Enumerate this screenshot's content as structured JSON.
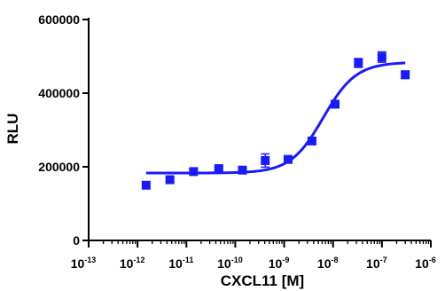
{
  "chart_data": {
    "type": "scatter",
    "xlabel": "CXCL11 [M]",
    "ylabel": "RLU",
    "x_scale": "log",
    "xlim": [
      1e-13,
      1e-06
    ],
    "ylim": [
      0,
      600000
    ],
    "x_ticks": [
      {
        "base": "10",
        "exp": "-13",
        "value": 1e-13
      },
      {
        "base": "10",
        "exp": "-12",
        "value": 1e-12
      },
      {
        "base": "10",
        "exp": "-11",
        "value": 1e-11
      },
      {
        "base": "10",
        "exp": "-10",
        "value": 1e-10
      },
      {
        "base": "10",
        "exp": "-9",
        "value": 1e-09
      },
      {
        "base": "10",
        "exp": "-8",
        "value": 1e-08
      },
      {
        "base": "10",
        "exp": "-7",
        "value": 1e-07
      },
      {
        "base": "10",
        "exp": "-6",
        "value": 1e-06
      }
    ],
    "y_ticks": [
      {
        "label": "0",
        "value": 0
      },
      {
        "label": "200000",
        "value": 200000
      },
      {
        "label": "400000",
        "value": 400000
      },
      {
        "label": "600000",
        "value": 600000
      }
    ],
    "grid": false,
    "legend": "none",
    "marker_color": "#1a1aff",
    "curve_color": "#1a1aff",
    "points": [
      {
        "x": 1.5e-12,
        "y": 150000,
        "err": 0
      },
      {
        "x": 4.6e-12,
        "y": 165000,
        "err": 8000
      },
      {
        "x": 1.4e-11,
        "y": 187000,
        "err": 6000
      },
      {
        "x": 4.6e-11,
        "y": 195000,
        "err": 4000
      },
      {
        "x": 1.4e-10,
        "y": 191000,
        "err": 3000
      },
      {
        "x": 4.1e-10,
        "y": 217000,
        "err": 18000
      },
      {
        "x": 1.2e-09,
        "y": 220000,
        "err": 5000
      },
      {
        "x": 3.7e-09,
        "y": 270000,
        "err": 7000
      },
      {
        "x": 1.1e-08,
        "y": 370000,
        "err": 5000
      },
      {
        "x": 3.3e-08,
        "y": 482000,
        "err": 12000
      },
      {
        "x": 1e-07,
        "y": 498000,
        "err": 14000
      },
      {
        "x": 3e-07,
        "y": 450000,
        "err": 10000
      }
    ],
    "fit": {
      "bottom": 183000,
      "top": 484000,
      "log_ec50": -8.2,
      "hill_slope": 1.3,
      "x_start": 1.5e-12,
      "x_end": 3e-07
    }
  }
}
